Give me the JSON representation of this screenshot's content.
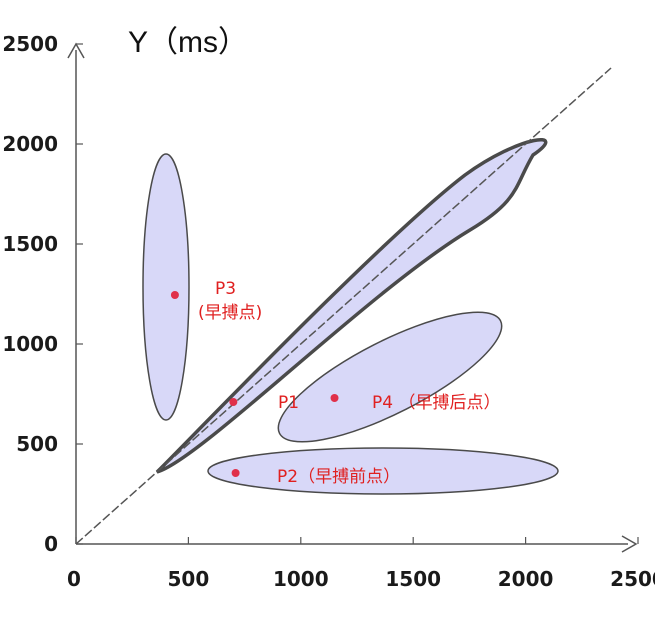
{
  "chart_data": {
    "type": "scatter",
    "title": "",
    "ylabel": "Y（ms）",
    "xlabel": "",
    "xlim": [
      0,
      2500
    ],
    "ylim": [
      0,
      2500
    ],
    "x_ticks": [
      "0",
      "500",
      "1000",
      "1500",
      "2000",
      "2500"
    ],
    "y_ticks": [
      "0",
      "500",
      "1000",
      "1500",
      "2000",
      "2500"
    ],
    "diagonal": {
      "from": [
        0,
        0
      ],
      "to": [
        2380,
        2380
      ]
    },
    "points": [
      {
        "id": "P1",
        "x": 700,
        "y": 710
      },
      {
        "id": "P2",
        "x": 710,
        "y": 355
      },
      {
        "id": "P3",
        "x": 440,
        "y": 1245
      },
      {
        "id": "P4",
        "x": 1150,
        "y": 730
      }
    ],
    "point_labels": {
      "P1": "P1",
      "P2": "P2（早搏前点）",
      "P3_line1": "P3",
      "P3_line2": "(早搏点)",
      "P4": "P4 （早搏后点）"
    },
    "regions": [
      {
        "name": "normal-region",
        "around": "diagonal"
      },
      {
        "name": "P2-region",
        "center": [
          1400,
          370
        ]
      },
      {
        "name": "P3-region",
        "center": [
          420,
          1165
        ]
      },
      {
        "name": "P4-region",
        "center": [
          1410,
          830
        ]
      }
    ],
    "colors": {
      "region_fill": "#d8d8f8",
      "region_stroke": "#444444",
      "point": "#e0304a",
      "label": "#e02020",
      "axis": "#555555"
    }
  }
}
